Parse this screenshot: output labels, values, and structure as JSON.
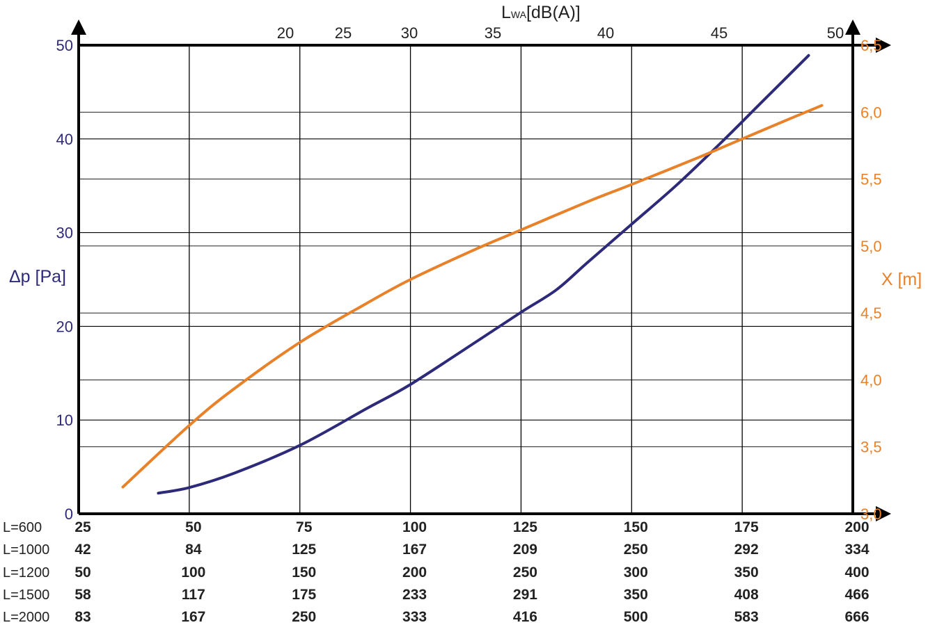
{
  "chart_data": {
    "type": "line",
    "top_axis": {
      "label_main": "L",
      "label_sub": "WA",
      "label_unit": "[dB(A)]",
      "ticks": [
        {
          "v": 20,
          "label": "20"
        },
        {
          "v": 25,
          "label": "25"
        },
        {
          "v": 30,
          "label": "30"
        },
        {
          "v": 35,
          "label": "35"
        },
        {
          "v": 40,
          "label": "40"
        },
        {
          "v": 45,
          "label": "45"
        },
        {
          "v": 50,
          "label": "50"
        }
      ]
    },
    "left_axis": {
      "label": "Δp [Pa]",
      "range": [
        0,
        50
      ],
      "ticks": [
        {
          "v": 0,
          "label": "0"
        },
        {
          "v": 10,
          "label": "10"
        },
        {
          "v": 20,
          "label": "20"
        },
        {
          "v": 30,
          "label": "30"
        },
        {
          "v": 40,
          "label": "40"
        },
        {
          "v": 50,
          "label": "50"
        }
      ]
    },
    "right_axis": {
      "label": "X [m]",
      "range": [
        3.0,
        6.5
      ],
      "ticks": [
        {
          "v": 3.0,
          "label": "3,0"
        },
        {
          "v": 3.5,
          "label": "3,5"
        },
        {
          "v": 4.0,
          "label": "4,0"
        },
        {
          "v": 4.5,
          "label": "4,5"
        },
        {
          "v": 5.0,
          "label": "5,0"
        },
        {
          "v": 5.5,
          "label": "5,5"
        },
        {
          "v": 6.0,
          "label": "6,0"
        },
        {
          "v": 6.5,
          "label": "6,5"
        }
      ]
    },
    "x_axis": {
      "range": [
        25,
        200
      ],
      "rows": [
        {
          "label": "L=600",
          "values": [
            "25",
            "50",
            "75",
            "100",
            "125",
            "150",
            "175",
            "200"
          ]
        },
        {
          "label": "L=1000",
          "values": [
            "42",
            "84",
            "125",
            "167",
            "209",
            "250",
            "292",
            "334"
          ]
        },
        {
          "label": "L=1200",
          "values": [
            "50",
            "100",
            "150",
            "200",
            "250",
            "300",
            "350",
            "400"
          ]
        },
        {
          "label": "L=1500",
          "values": [
            "58",
            "117",
            "175",
            "233",
            "291",
            "350",
            "408",
            "466"
          ]
        },
        {
          "label": "L=2000",
          "values": [
            "83",
            "167",
            "250",
            "333",
            "416",
            "500",
            "583",
            "666"
          ]
        }
      ]
    },
    "series": [
      {
        "axis": "left",
        "color": "#2e2a7a",
        "x": [
          43,
          50,
          60,
          75,
          90,
          100,
          115,
          125,
          133,
          140,
          150,
          160,
          170,
          180,
          190
        ],
        "y": [
          2.2,
          2.8,
          4.3,
          7.3,
          11.2,
          13.8,
          18.4,
          21.5,
          23.9,
          26.8,
          30.9,
          35.0,
          39.5,
          44.2,
          48.9
        ]
      },
      {
        "axis": "right",
        "color": "#e8822a",
        "x": [
          35,
          50,
          60,
          75,
          90,
          100,
          115,
          125,
          140,
          150,
          165,
          175,
          185,
          193
        ],
        "y": [
          3.2,
          3.66,
          3.93,
          4.28,
          4.57,
          4.75,
          4.98,
          5.12,
          5.33,
          5.46,
          5.66,
          5.8,
          5.94,
          6.05
        ]
      }
    ]
  }
}
